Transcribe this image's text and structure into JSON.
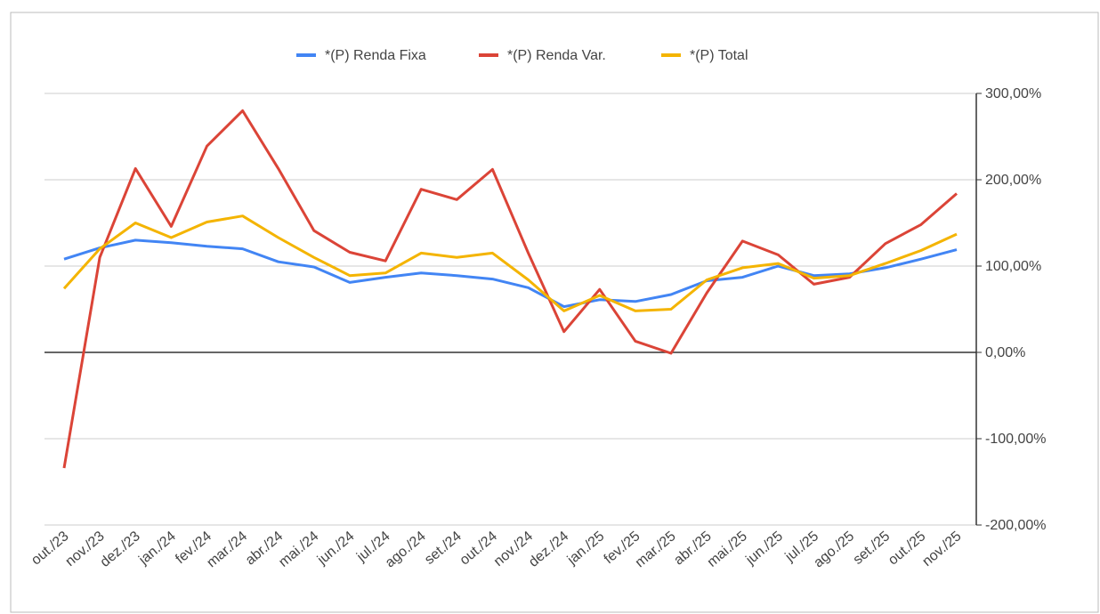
{
  "chart_data": {
    "type": "line",
    "categories": [
      "out./23",
      "nov./23",
      "dez./23",
      "jan./24",
      "fev./24",
      "mar./24",
      "abr./24",
      "mai./24",
      "jun./24",
      "jul./24",
      "ago./24",
      "set./24",
      "out./24",
      "nov./24",
      "dez./24",
      "jan./25",
      "fev./25",
      "mar./25",
      "abr./25",
      "mai./25",
      "jun./25",
      "jul./25",
      "ago./25",
      "set./25",
      "out./25",
      "nov./25"
    ],
    "series": [
      {
        "name": "*(P) Renda Fixa",
        "color": "#4285f4",
        "values": [
          108,
          121,
          130,
          127,
          123,
          120,
          105,
          99,
          81,
          87,
          92,
          89,
          85,
          75,
          53,
          61,
          59,
          67,
          83,
          87,
          100,
          89,
          91,
          98,
          108,
          119
        ]
      },
      {
        "name": "*(P) Renda Var.",
        "color": "#db4437",
        "values": [
          -134,
          110,
          213,
          146,
          239,
          280,
          213,
          141,
          116,
          106,
          189,
          177,
          212,
          115,
          24,
          73,
          13,
          -1,
          69,
          129,
          113,
          79,
          87,
          126,
          148,
          184
        ]
      },
      {
        "name": "*(P) Total",
        "color": "#f4b400",
        "values": [
          74,
          120,
          150,
          133,
          151,
          158,
          133,
          110,
          89,
          92,
          115,
          110,
          115,
          84,
          48,
          66,
          48,
          50,
          84,
          98,
          103,
          86,
          89,
          103,
          118,
          137
        ]
      }
    ],
    "ylim": [
      -200,
      300
    ],
    "yticks": [
      {
        "value": -200,
        "label": "-200,00%"
      },
      {
        "value": -100,
        "label": "-100,00%"
      },
      {
        "value": 0,
        "label": "0,00%"
      },
      {
        "value": 100,
        "label": "100,00%"
      },
      {
        "value": 200,
        "label": "200,00%"
      },
      {
        "value": 300,
        "label": "300,00%"
      }
    ],
    "grid": true,
    "legend": "top"
  }
}
